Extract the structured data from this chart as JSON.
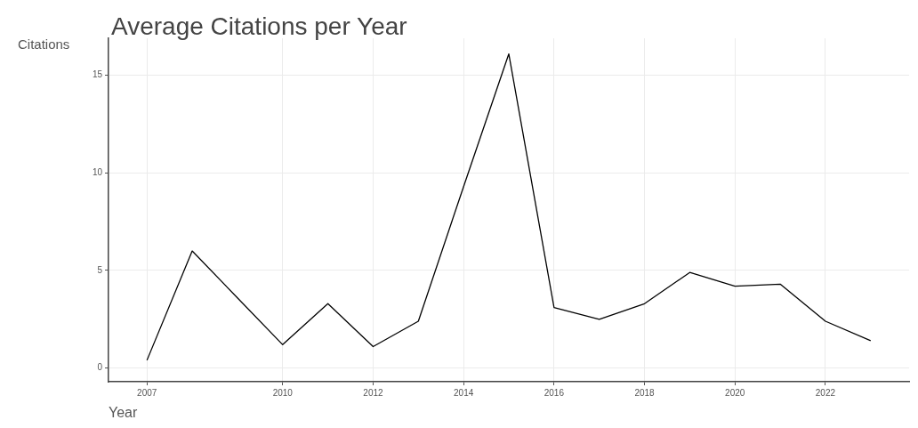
{
  "chart_data": {
    "type": "line",
    "title": "Average Citations per Year",
    "xlabel": "Year",
    "ylabel": "Citations",
    "x": [
      2007,
      2008,
      2009,
      2010,
      2011,
      2012,
      2013,
      2014,
      2015,
      2016,
      2017,
      2018,
      2019,
      2020,
      2021,
      2022,
      2023
    ],
    "series": [
      {
        "color": "#000000",
        "values": [
          0.4,
          6.0,
          3.6,
          1.2,
          3.3,
          1.1,
          2.4,
          9.3,
          16.1,
          3.1,
          2.5,
          3.3,
          4.9,
          4.2,
          4.3,
          2.4,
          1.4
        ]
      }
    ],
    "xlim": [
      2006.15,
      2023.85
    ],
    "xticks": [
      2007,
      2010,
      2012,
      2014,
      2016,
      2018,
      2020,
      2022
    ],
    "ylim": [
      -0.7,
      16.9
    ],
    "yticks": [
      0,
      5,
      10,
      15
    ],
    "grid": true,
    "legend": false,
    "marker": "none",
    "line_style": "solid"
  }
}
